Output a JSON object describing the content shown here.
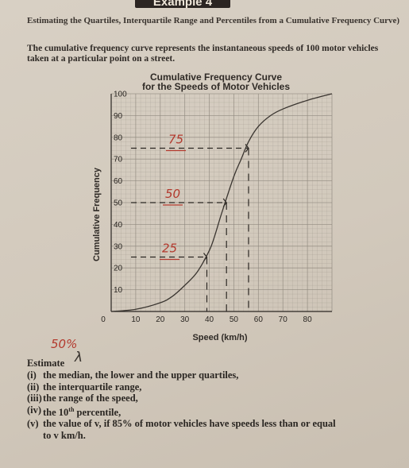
{
  "banner": "Example 4",
  "heading": "Estimating the Quartiles, Interquartile Range and Percentiles from a Cumulative Frequency Curve)",
  "intro": "The cumulative frequency curve represents the instantaneous speeds of 100 motor vehicles taken at a particular point on a street.",
  "chart_data": {
    "type": "line",
    "title": "Cumulative Frequency Curve",
    "subtitle": "for the Speeds of Motor Vehicles",
    "xlabel": "Speed (km/h)",
    "ylabel": "Cumulative Frequency",
    "xlim": [
      0,
      90
    ],
    "ylim": [
      0,
      100
    ],
    "x_ticks": [
      "0",
      "10",
      "20",
      "30",
      "40",
      "50",
      "60",
      "70",
      "80"
    ],
    "y_ticks": [
      "10",
      "20",
      "30",
      "40",
      "50",
      "60",
      "70",
      "80",
      "90",
      "100"
    ],
    "grid": true,
    "series": [
      {
        "x": [
          0,
          10,
          20,
          25,
          30,
          35,
          40,
          42,
          45,
          50,
          53,
          56,
          60,
          65,
          70,
          80,
          90
        ],
        "y": [
          0,
          1,
          4,
          7,
          12,
          18,
          28,
          34,
          45,
          62,
          70,
          78,
          85,
          90,
          93,
          97,
          100
        ]
      }
    ],
    "annotations": [
      {
        "text": "75",
        "y": 75,
        "x": 56
      },
      {
        "text": "50",
        "y": 50,
        "x": 47
      },
      {
        "text": "25",
        "y": 25,
        "x": 39
      }
    ]
  },
  "handwritten_note": "50%",
  "estimate_label": "Estimate",
  "questions": [
    {
      "num": "(i)",
      "text": "the median, the lower and the upper quartiles,"
    },
    {
      "num": "(ii)",
      "text": "the interquartile range,"
    },
    {
      "num": "(iii)",
      "text": "the range of the speed,"
    },
    {
      "num": "(iv)",
      "text_pre": "the 10",
      "sup": "th",
      "text_post": " percentile,"
    },
    {
      "num": "(v)",
      "text": "the value of v, if 85% of motor vehicles have speeds less than or equal",
      "cont": "to v km/h."
    }
  ],
  "colors": {
    "curve": "#3a3530",
    "grid": "#8f887e",
    "hand": "#b33a2e"
  }
}
